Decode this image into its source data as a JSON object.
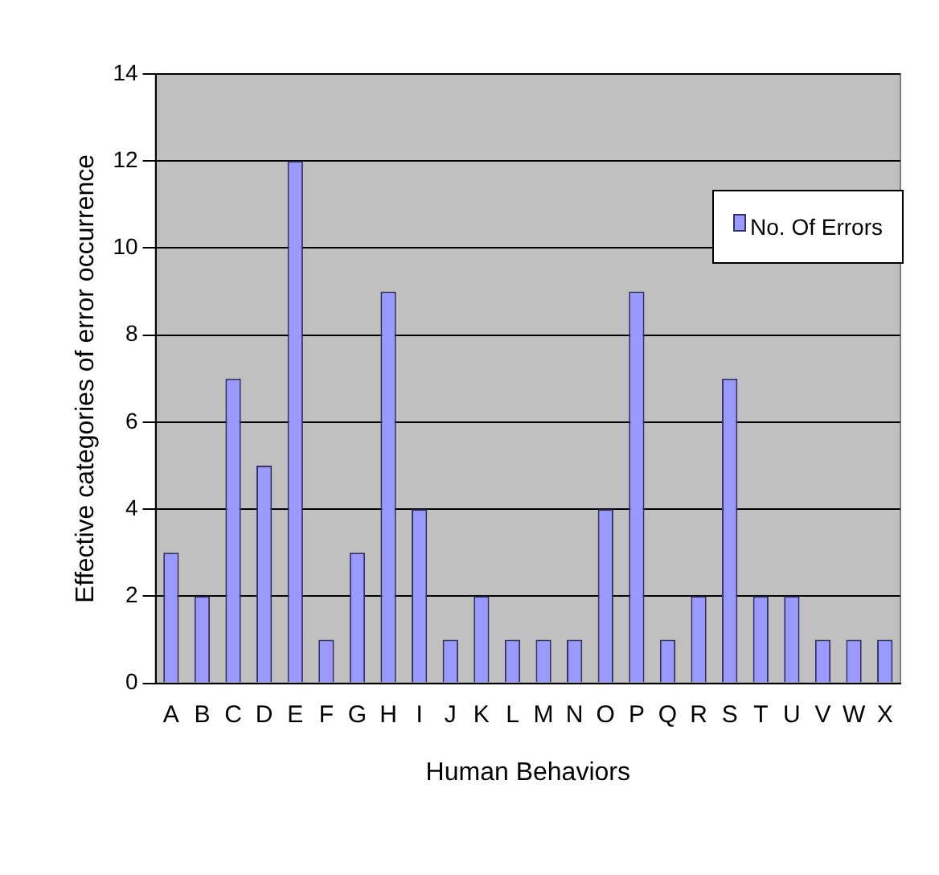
{
  "chart_data": {
    "type": "bar",
    "xlabel": "Human Behaviors",
    "ylabel": "Effective categories of error occurrence",
    "categories": [
      "A",
      "B",
      "C",
      "D",
      "E",
      "F",
      "G",
      "H",
      "I",
      "J",
      "K",
      "L",
      "M",
      "N",
      "O",
      "P",
      "Q",
      "R",
      "S",
      "T",
      "U",
      "V",
      "W",
      "X"
    ],
    "series": [
      {
        "name": "No. Of Errors",
        "color": "#9999ff",
        "values": [
          3,
          2,
          7,
          5,
          12,
          1,
          3,
          9,
          4,
          1,
          2,
          1,
          1,
          1,
          4,
          9,
          1,
          2,
          7,
          2,
          2,
          1,
          1,
          1
        ]
      }
    ],
    "ylim": [
      0,
      14
    ],
    "yticks": [
      0,
      2,
      4,
      6,
      8,
      10,
      12,
      14
    ],
    "grid": "y",
    "legend": "top right"
  }
}
